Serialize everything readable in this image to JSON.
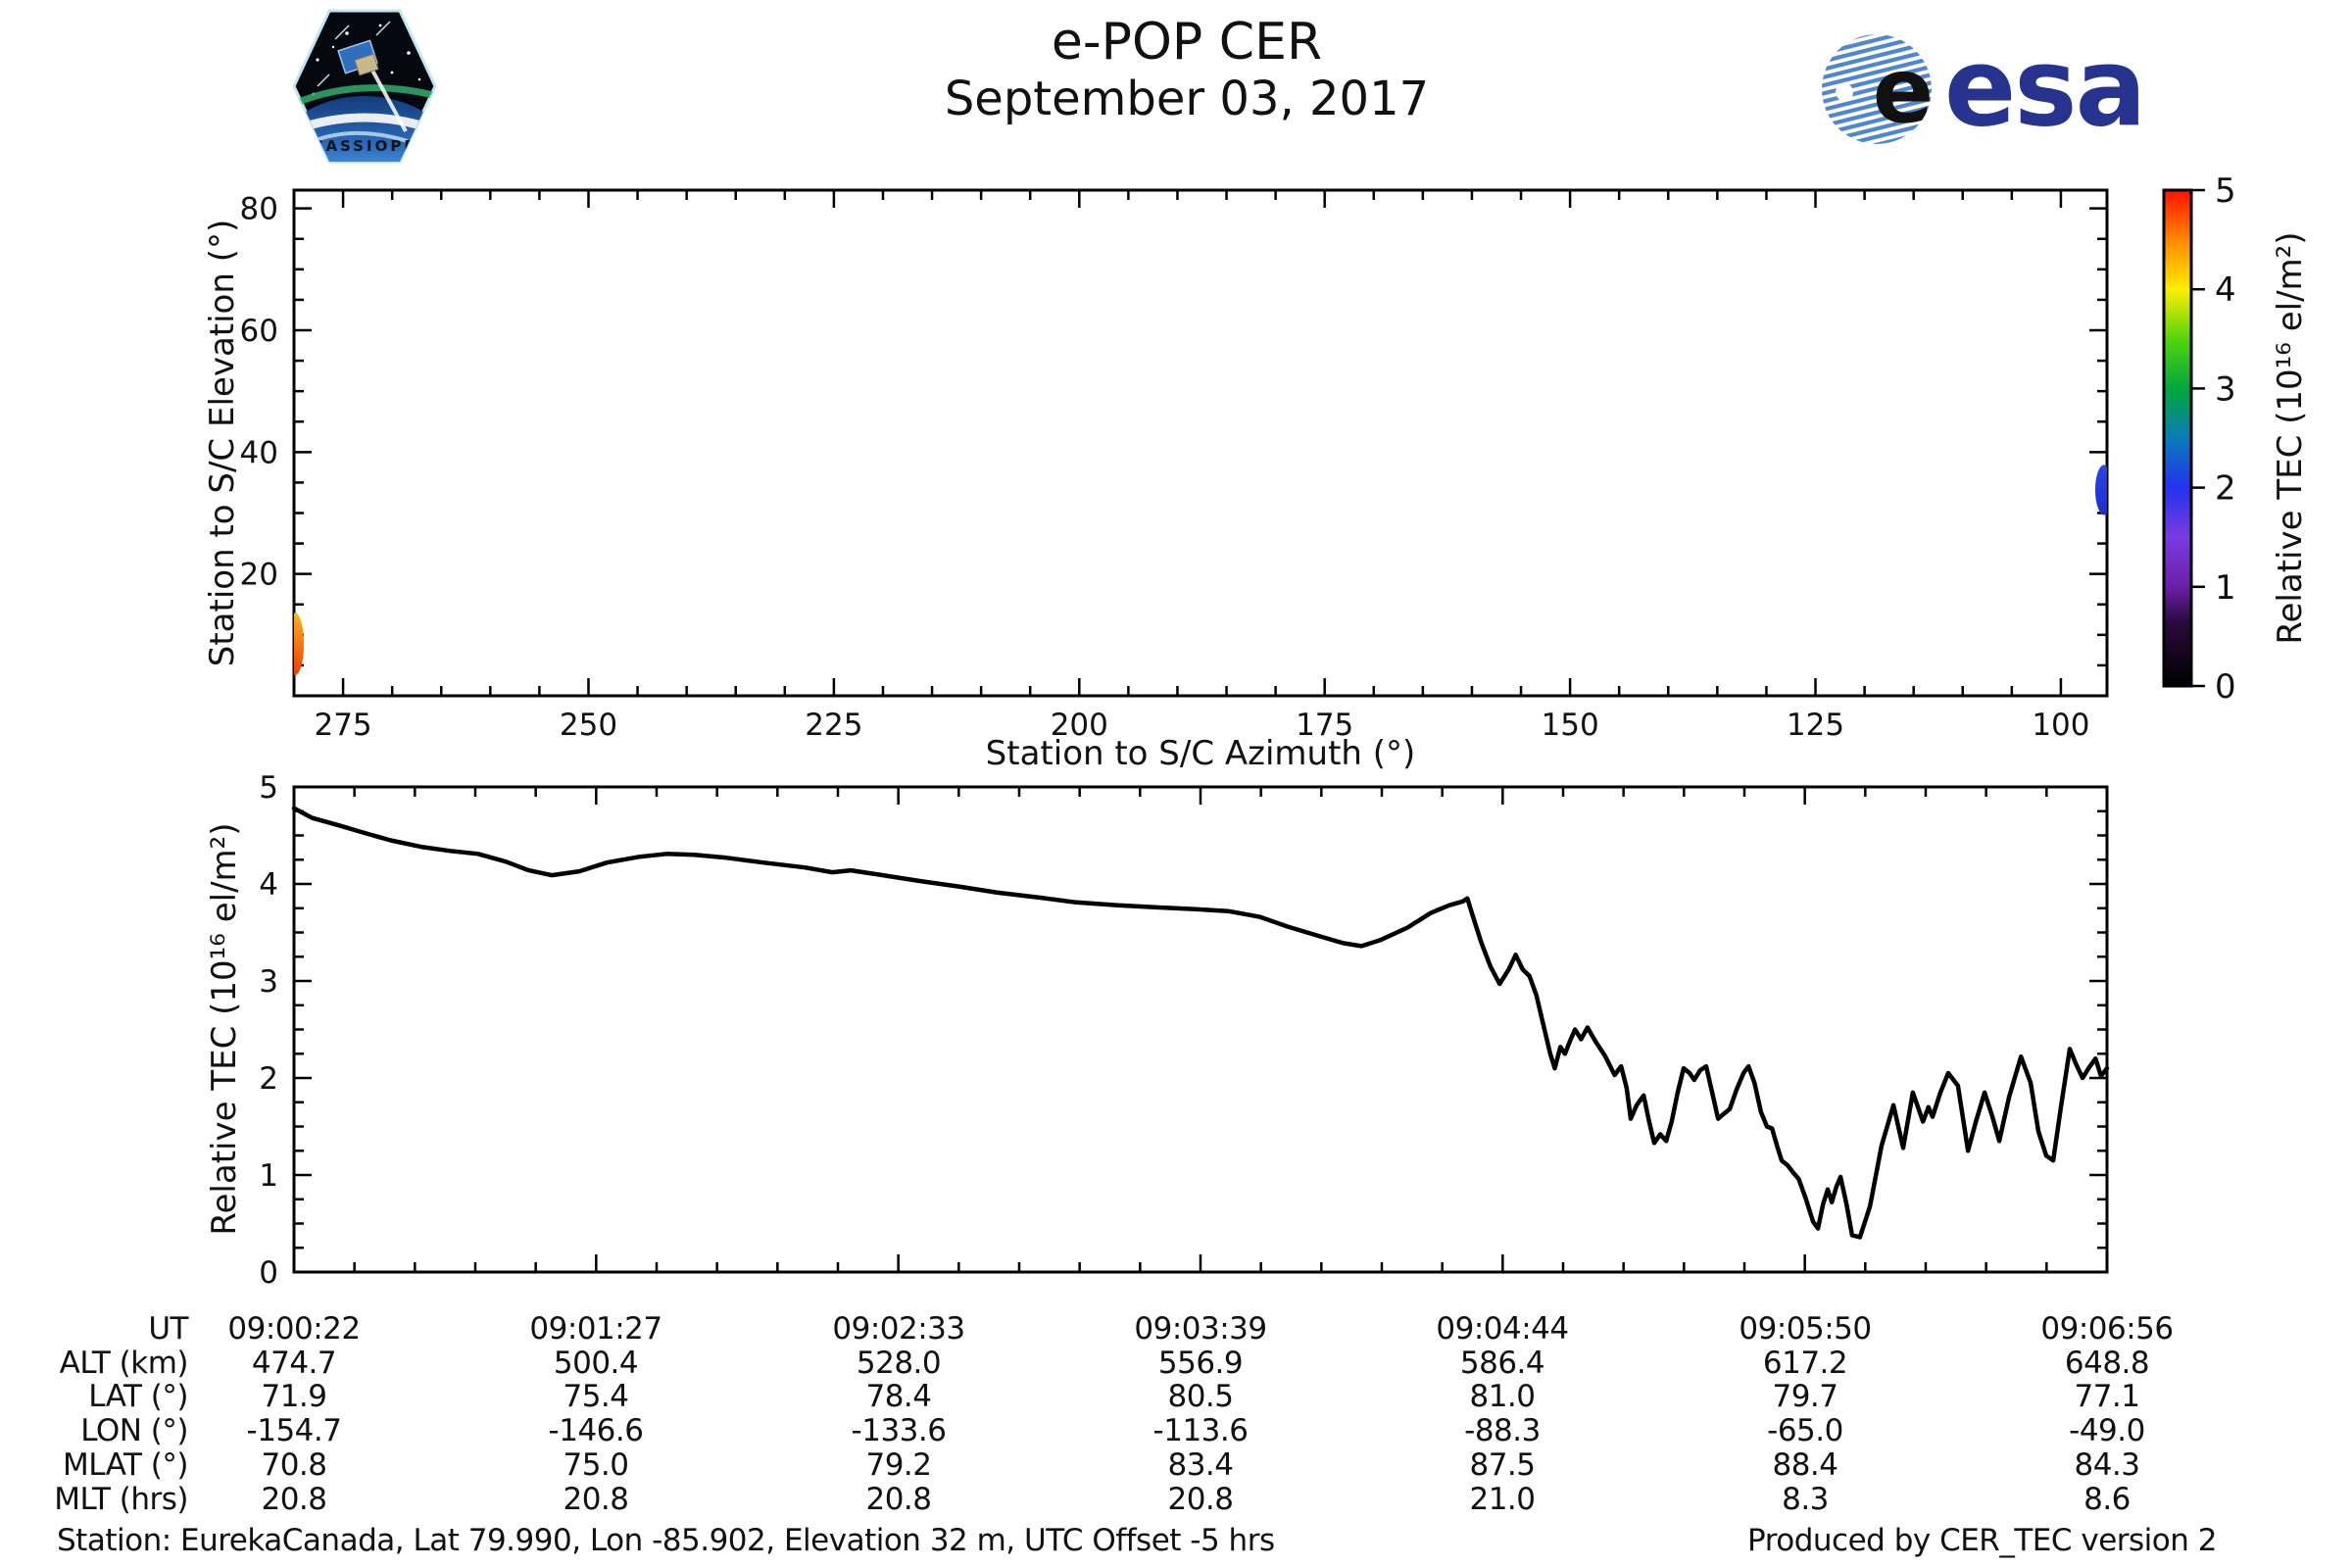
{
  "header": {
    "title": "e-POP CER",
    "date": "September 03, 2017",
    "cassiope_patch_label": "CASSIOPE",
    "esa_logo_text": "esa"
  },
  "chart_data": [
    {
      "type": "scatter",
      "name": "station-to-spacecraft-track",
      "xlabel": "Station to S/C Azimuth (°)",
      "ylabel": "Station to S/C Elevation (°)",
      "xlim": [
        280,
        95.3
      ],
      "ylim": [
        0,
        83
      ],
      "xticks": [
        275,
        250,
        225,
        200,
        175,
        150,
        125,
        100
      ],
      "yticks": [
        20,
        40,
        60,
        80
      ],
      "x_minor_step": 5,
      "y_minor_step": 5,
      "grid": false,
      "segments": [
        {
          "azimuth": 279.9,
          "elevation": 8.5,
          "el_span": 7,
          "tec": 4.6,
          "color_top": "#ffb020",
          "color_bottom": "#f03c00",
          "note": "pass start, clipped at left edge"
        },
        {
          "azimuth": 95.6,
          "elevation": 33.8,
          "el_span": 5,
          "tec": 2.0,
          "color_top": "#2a44e8",
          "color_bottom": "#1c2fd0",
          "note": "pass end, clipped at right edge"
        }
      ],
      "colorbar": {
        "label": "Relative TEC (10¹⁶ el/m²)",
        "ticks": [
          0,
          1,
          2,
          3,
          4,
          5
        ],
        "lim": [
          0,
          5
        ],
        "gradient_bottom_to_top": [
          [
            0.0,
            "#000000"
          ],
          [
            0.13,
            "#2b0a3d"
          ],
          [
            0.2,
            "#6b1fa8"
          ],
          [
            0.3,
            "#7a3be0"
          ],
          [
            0.4,
            "#2233ee"
          ],
          [
            0.5,
            "#0b7bb8"
          ],
          [
            0.6,
            "#00a83c"
          ],
          [
            0.7,
            "#54d40e"
          ],
          [
            0.8,
            "#ffee00"
          ],
          [
            0.9,
            "#ff8800"
          ],
          [
            1.0,
            "#ff1100"
          ]
        ]
      }
    },
    {
      "type": "line",
      "name": "relative-tec-timeseries",
      "ylabel": "Relative TEC (10¹⁶ el/m²)",
      "ylim": [
        0,
        5
      ],
      "yticks": [
        0,
        1,
        2,
        3,
        4,
        5
      ],
      "y_minor_step": 0.25,
      "x_range_seconds": [
        0,
        394
      ],
      "xtick_times": [
        "09:00:22",
        "09:01:27",
        "09:02:33",
        "09:03:39",
        "09:04:44",
        "09:05:50",
        "09:06:56"
      ],
      "line_color": "#000000",
      "series": [
        {
          "name": "Relative TEC",
          "points_t_tec": [
            [
              0,
              4.78
            ],
            [
              4,
              4.68
            ],
            [
              10,
              4.6
            ],
            [
              15,
              4.53
            ],
            [
              21,
              4.45
            ],
            [
              28,
              4.38
            ],
            [
              34,
              4.34
            ],
            [
              40,
              4.31
            ],
            [
              46,
              4.23
            ],
            [
              51,
              4.14
            ],
            [
              56,
              4.09
            ],
            [
              62,
              4.13
            ],
            [
              68,
              4.22
            ],
            [
              75,
              4.28
            ],
            [
              81,
              4.31
            ],
            [
              87,
              4.3
            ],
            [
              94,
              4.27
            ],
            [
              102,
              4.22
            ],
            [
              111,
              4.17
            ],
            [
              117,
              4.12
            ],
            [
              121,
              4.14
            ],
            [
              128,
              4.09
            ],
            [
              136,
              4.03
            ],
            [
              145,
              3.97
            ],
            [
              153,
              3.91
            ],
            [
              162,
              3.86
            ],
            [
              170,
              3.81
            ],
            [
              179,
              3.78
            ],
            [
              187,
              3.76
            ],
            [
              196,
              3.74
            ],
            [
              203,
              3.72
            ],
            [
              210,
              3.66
            ],
            [
              216,
              3.56
            ],
            [
              223,
              3.46
            ],
            [
              228,
              3.39
            ],
            [
              232,
              3.36
            ],
            [
              236,
              3.42
            ],
            [
              242,
              3.55
            ],
            [
              247,
              3.7
            ],
            [
              251,
              3.78
            ],
            [
              254,
              3.82
            ],
            [
              255,
              3.85
            ],
            [
              256.5,
              3.62
            ],
            [
              258,
              3.4
            ],
            [
              260,
              3.15
            ],
            [
              262,
              2.97
            ],
            [
              264,
              3.12
            ],
            [
              265.5,
              3.27
            ],
            [
              267,
              3.12
            ],
            [
              268.5,
              3.05
            ],
            [
              270,
              2.85
            ],
            [
              271.5,
              2.55
            ],
            [
              273,
              2.25
            ],
            [
              274,
              2.1
            ],
            [
              275.2,
              2.32
            ],
            [
              276.2,
              2.25
            ],
            [
              277.3,
              2.38
            ],
            [
              278.4,
              2.5
            ],
            [
              279.7,
              2.4
            ],
            [
              281.1,
              2.52
            ],
            [
              282.8,
              2.38
            ],
            [
              285,
              2.22
            ],
            [
              287,
              2.03
            ],
            [
              288.4,
              2.12
            ],
            [
              289.6,
              1.9
            ],
            [
              290.5,
              1.58
            ],
            [
              291.8,
              1.72
            ],
            [
              293.3,
              1.82
            ],
            [
              294.5,
              1.55
            ],
            [
              295.6,
              1.33
            ],
            [
              296.9,
              1.42
            ],
            [
              298.2,
              1.35
            ],
            [
              299.4,
              1.55
            ],
            [
              300.7,
              1.85
            ],
            [
              302,
              2.1
            ],
            [
              303.3,
              2.05
            ],
            [
              304.3,
              1.98
            ],
            [
              305.6,
              2.08
            ],
            [
              306.9,
              2.12
            ],
            [
              308.2,
              1.85
            ],
            [
              309.5,
              1.58
            ],
            [
              310.7,
              1.63
            ],
            [
              312,
              1.68
            ],
            [
              313.5,
              1.88
            ],
            [
              315,
              2.05
            ],
            [
              316.1,
              2.12
            ],
            [
              317.4,
              1.95
            ],
            [
              318.8,
              1.65
            ],
            [
              320.1,
              1.5
            ],
            [
              321.2,
              1.48
            ],
            [
              322.3,
              1.3
            ],
            [
              323.3,
              1.15
            ],
            [
              324.6,
              1.1
            ],
            [
              325.9,
              1.02
            ],
            [
              327,
              0.96
            ],
            [
              328.6,
              0.75
            ],
            [
              330.1,
              0.52
            ],
            [
              331.2,
              0.45
            ],
            [
              332.3,
              0.7
            ],
            [
              333.3,
              0.85
            ],
            [
              334.2,
              0.72
            ],
            [
              335.2,
              0.88
            ],
            [
              336.1,
              0.98
            ],
            [
              337.4,
              0.7
            ],
            [
              338.6,
              0.38
            ],
            [
              340.3,
              0.36
            ],
            [
              342.5,
              0.68
            ],
            [
              345,
              1.3
            ],
            [
              347.6,
              1.72
            ],
            [
              349.7,
              1.28
            ],
            [
              351.8,
              1.85
            ],
            [
              354,
              1.55
            ],
            [
              355.2,
              1.7
            ],
            [
              356.1,
              1.6
            ],
            [
              357.8,
              1.85
            ],
            [
              359.5,
              2.05
            ],
            [
              361.6,
              1.92
            ],
            [
              363.8,
              1.25
            ],
            [
              365.5,
              1.55
            ],
            [
              367.4,
              1.85
            ],
            [
              369.1,
              1.6
            ],
            [
              370.6,
              1.35
            ],
            [
              372.7,
              1.8
            ],
            [
              375.3,
              2.22
            ],
            [
              377.4,
              1.95
            ],
            [
              379.1,
              1.45
            ],
            [
              380.8,
              1.2
            ],
            [
              382.3,
              1.15
            ],
            [
              384,
              1.7
            ],
            [
              385.9,
              2.3
            ],
            [
              387.2,
              2.15
            ],
            [
              388.7,
              2.0
            ],
            [
              390,
              2.1
            ],
            [
              391.5,
              2.2
            ],
            [
              392.7,
              2.02
            ],
            [
              394,
              2.1
            ]
          ]
        }
      ]
    }
  ],
  "table": {
    "rows": [
      {
        "label": "UT",
        "values": [
          "09:00:22",
          "09:01:27",
          "09:02:33",
          "09:03:39",
          "09:04:44",
          "09:05:50",
          "09:06:56"
        ]
      },
      {
        "label": "ALT (km)",
        "values": [
          "474.7",
          "500.4",
          "528.0",
          "556.9",
          "586.4",
          "617.2",
          "648.8"
        ]
      },
      {
        "label": "LAT (°)",
        "values": [
          "71.9",
          "75.4",
          "78.4",
          "80.5",
          "81.0",
          "79.7",
          "77.1"
        ]
      },
      {
        "label": "LON (°)",
        "values": [
          "-154.7",
          "-146.6",
          "-133.6",
          "-113.6",
          "-88.3",
          "-65.0",
          "-49.0"
        ]
      },
      {
        "label": "MLAT (°)",
        "values": [
          "70.8",
          "75.0",
          "79.2",
          "83.4",
          "87.5",
          "88.4",
          "84.3"
        ]
      },
      {
        "label": "MLT (hrs)",
        "values": [
          "20.8",
          "20.8",
          "20.8",
          "20.8",
          "21.0",
          "8.3",
          "8.6"
        ]
      }
    ]
  },
  "footer": {
    "left": "Station: EurekaCanada, Lat 79.990, Lon -85.902, Elevation 32 m, UTC Offset -5 hrs",
    "right": "Produced by CER_TEC version 2"
  }
}
